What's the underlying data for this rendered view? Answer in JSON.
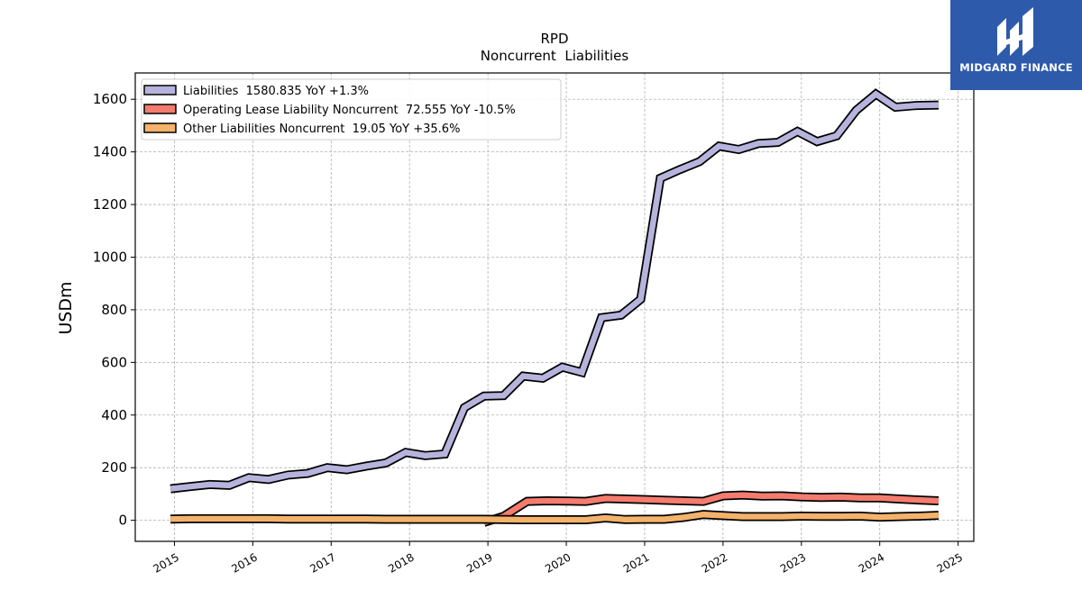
{
  "brand": {
    "name": "MIDGARD FINANCE",
    "bg_color": "#2e5aac"
  },
  "chart_data": {
    "type": "line",
    "title": "RPD",
    "subtitle": "Noncurrent  Liabilities",
    "xlabel": "",
    "ylabel": "USDm",
    "xlim": [
      2014.5,
      2025.2
    ],
    "ylim": [
      -80,
      1700
    ],
    "yticks": [
      0,
      200,
      400,
      600,
      800,
      1000,
      1200,
      1400,
      1600
    ],
    "xticks": [
      "2015",
      "2016",
      "2017",
      "2018",
      "2019",
      "2020",
      "2021",
      "2022",
      "2023",
      "2024",
      "2025"
    ],
    "grid": true,
    "legend_position": "upper-left",
    "series": [
      {
        "name": "Liabilities",
        "legend_label": "Liabilities  1580.835 YoY +1.3%",
        "color": "#b6b3dc",
        "x": [
          2014.95,
          2015.2,
          2015.45,
          2015.7,
          2015.95,
          2016.2,
          2016.45,
          2016.7,
          2016.95,
          2017.2,
          2017.45,
          2017.7,
          2017.95,
          2018.2,
          2018.45,
          2018.7,
          2018.95,
          2019.2,
          2019.45,
          2019.7,
          2019.95,
          2020.2,
          2020.45,
          2020.7,
          2020.95,
          2021.2,
          2021.45,
          2021.7,
          2021.95,
          2022.2,
          2022.45,
          2022.7,
          2022.95,
          2023.2,
          2023.45,
          2023.7,
          2023.95,
          2024.2,
          2024.45,
          2024.75
        ],
        "y": [
          120,
          128,
          136,
          133,
          162,
          155,
          172,
          178,
          200,
          192,
          206,
          218,
          258,
          246,
          252,
          428,
          472,
          474,
          548,
          540,
          582,
          562,
          770,
          780,
          840,
          1300,
          1333,
          1363,
          1422,
          1409,
          1432,
          1436,
          1478,
          1439,
          1461,
          1558,
          1620,
          1570,
          1576,
          1578
        ]
      },
      {
        "name": "Operating Lease Liability Noncurrent",
        "legend_label": "Operating Lease Liability Noncurrent  72.555 YoY -10.5%",
        "color": "#f47c6e",
        "x": [
          2018.95,
          2019.2,
          2019.5,
          2019.75,
          2020.0,
          2020.25,
          2020.5,
          2020.75,
          2021.0,
          2021.25,
          2021.5,
          2021.75,
          2022.0,
          2022.25,
          2022.5,
          2022.75,
          2023.0,
          2023.25,
          2023.5,
          2023.75,
          2024.0,
          2024.25,
          2024.5,
          2024.75
        ],
        "y": [
          -8,
          15,
          72,
          74,
          73,
          72,
          83,
          81,
          79,
          76,
          74,
          72,
          93,
          96,
          92,
          93,
          89,
          87,
          88,
          85,
          85,
          81,
          77,
          74
        ]
      },
      {
        "name": "Other Liabilities Noncurrent",
        "legend_label": "Other Liabilities Noncurrent  19.05 YoY +35.6%",
        "color": "#f4b26b",
        "x": [
          2014.95,
          2015.2,
          2015.45,
          2015.7,
          2015.95,
          2016.2,
          2016.45,
          2016.7,
          2016.95,
          2017.2,
          2017.45,
          2017.7,
          2017.95,
          2018.2,
          2018.45,
          2018.7,
          2018.95,
          2019.2,
          2019.45,
          2019.7,
          2019.95,
          2020.25,
          2020.5,
          2020.75,
          2021.0,
          2021.25,
          2021.5,
          2021.75,
          2022.0,
          2022.25,
          2022.5,
          2022.75,
          2023.0,
          2023.25,
          2023.5,
          2023.75,
          2024.0,
          2024.25,
          2024.5,
          2024.75
        ],
        "y": [
          5,
          6,
          6,
          6,
          6,
          6,
          5,
          5,
          5,
          5,
          5,
          4,
          4,
          4,
          4,
          4,
          4,
          3,
          2,
          2,
          2,
          2,
          9,
          3,
          4,
          4,
          11,
          22,
          18,
          14,
          14,
          14,
          16,
          15,
          15,
          16,
          12,
          14,
          16,
          19
        ]
      }
    ]
  }
}
